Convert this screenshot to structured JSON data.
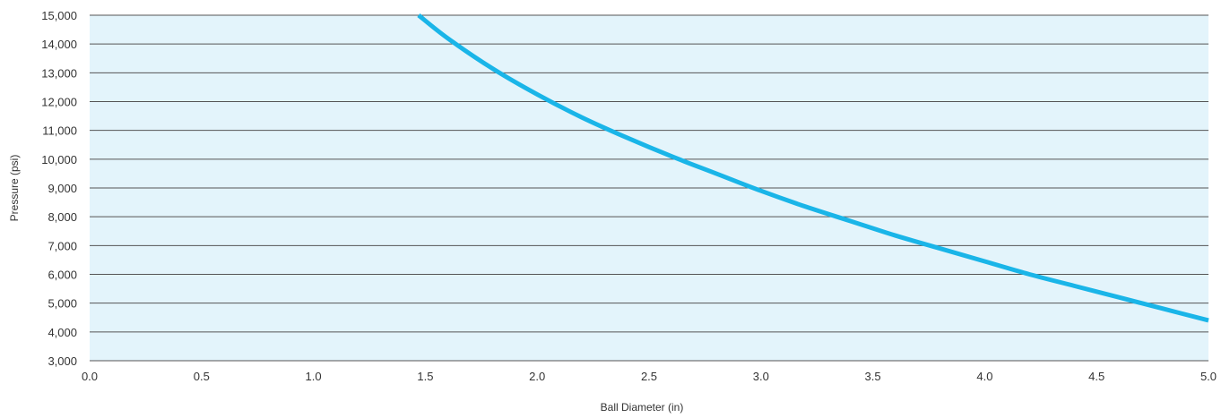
{
  "chart_data": {
    "type": "area",
    "xlabel": "Ball Diameter (in)",
    "ylabel": "Pressure (psi)",
    "xlim": [
      0,
      5
    ],
    "ylim": [
      3000,
      15000
    ],
    "x_ticks": [
      0,
      0.5,
      1,
      1.5,
      2,
      2.5,
      3,
      3.5,
      4,
      4.5,
      5
    ],
    "x_tick_labels": [
      "0.0",
      "0.5",
      "1.0",
      "1.5",
      "2.0",
      "2.5",
      "3.0",
      "3.5",
      "4.0",
      "4.5",
      "5.0"
    ],
    "y_ticks": [
      3000,
      4000,
      5000,
      6000,
      7000,
      8000,
      9000,
      10000,
      11000,
      12000,
      13000,
      14000,
      15000
    ],
    "y_tick_labels": [
      "3,000",
      "4,000",
      "5,000",
      "6,000",
      "7,000",
      "8,000",
      "9,000",
      "10,000",
      "11,000",
      "12,000",
      "13,000",
      "14,000",
      "15,000"
    ],
    "grid": "horizontal",
    "fill_region": "below 15,000 psi up to the curve",
    "series": [
      {
        "color": "#1ab5e8",
        "x": [
          1.47,
          1.6,
          1.8,
          2.0,
          2.2,
          2.4,
          2.6,
          2.8,
          3.0,
          3.2,
          3.4,
          3.6,
          3.8,
          4.0,
          4.2,
          4.4,
          4.6,
          4.8,
          5.0
        ],
        "y": [
          15000,
          14200,
          13150,
          12250,
          11450,
          10750,
          10100,
          9500,
          8900,
          8350,
          7850,
          7350,
          6900,
          6450,
          6000,
          5600,
          5200,
          4800,
          4400
        ]
      }
    ],
    "fill_color": "#e3f4fb",
    "line_color": "#1ab5e8",
    "grid_color": "#555555"
  }
}
